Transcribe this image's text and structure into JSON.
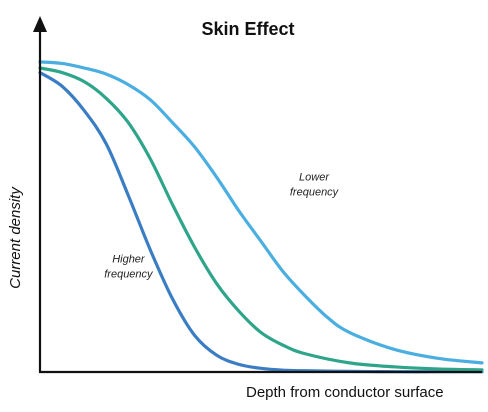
{
  "chart_data": {
    "type": "line",
    "title": "Skin Effect",
    "xlabel": "Depth from conductor surface",
    "ylabel": "Current density",
    "xlim": [
      0,
      1
    ],
    "ylim": [
      0,
      1
    ],
    "grid": false,
    "legend": "none",
    "axis_color": "#111111",
    "series": [
      {
        "color": "#3a7dc3",
        "x": [
          0,
          0.05,
          0.1,
          0.15,
          0.2,
          0.25,
          0.3,
          0.35,
          0.4,
          0.45,
          0.5,
          0.55,
          0.6,
          0.7,
          0.8,
          0.9,
          1.0
        ],
        "y": [
          0.985,
          0.94,
          0.86,
          0.75,
          0.58,
          0.4,
          0.24,
          0.12,
          0.055,
          0.025,
          0.012,
          0.006,
          0.004,
          0.002,
          0.001,
          0.001,
          0.001
        ]
      },
      {
        "color": "#2ea58a",
        "x": [
          0,
          0.05,
          0.1,
          0.15,
          0.2,
          0.25,
          0.3,
          0.35,
          0.4,
          0.45,
          0.5,
          0.55,
          0.6,
          0.7,
          0.8,
          0.9,
          1.0
        ],
        "y": [
          1.0,
          0.985,
          0.955,
          0.9,
          0.82,
          0.7,
          0.55,
          0.41,
          0.29,
          0.2,
          0.13,
          0.088,
          0.06,
          0.03,
          0.017,
          0.01,
          0.007
        ]
      },
      {
        "color": "#4aaee0",
        "x": [
          0,
          0.05,
          0.1,
          0.15,
          0.2,
          0.25,
          0.3,
          0.35,
          0.4,
          0.45,
          0.5,
          0.55,
          0.6,
          0.65,
          0.7,
          0.8,
          0.9,
          1.0
        ],
        "y": [
          1.02,
          1.015,
          1.0,
          0.98,
          0.945,
          0.895,
          0.82,
          0.74,
          0.64,
          0.53,
          0.43,
          0.33,
          0.25,
          0.18,
          0.13,
          0.075,
          0.045,
          0.03
        ]
      }
    ],
    "annotations": [
      {
        "text_lines": [
          "Lower",
          "frequency"
        ],
        "x": 0.62,
        "y": 0.63
      },
      {
        "text_lines": [
          "Higher",
          "frequency"
        ],
        "x": 0.2,
        "y": 0.36
      }
    ]
  }
}
